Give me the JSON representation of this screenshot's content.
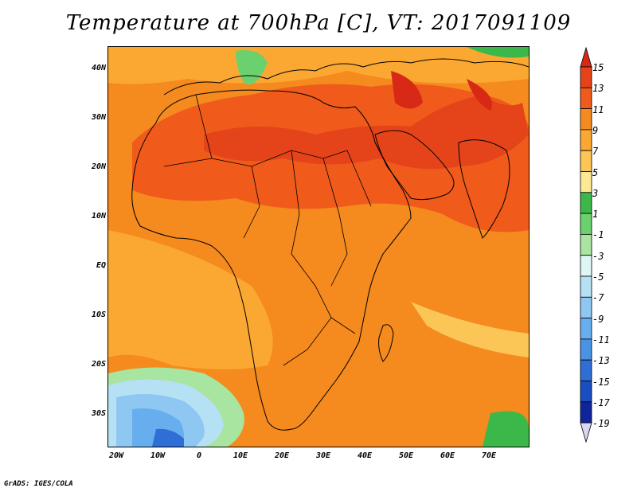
{
  "title": "Temperature at 700hPa [C], VT: 2017091109",
  "footer": "GrADS: IGES/COLA",
  "map": {
    "lat_labels": [
      "40N",
      "30N",
      "20N",
      "10N",
      "EQ",
      "10S",
      "20S",
      "30S"
    ],
    "lon_labels": [
      "20W",
      "10W",
      "0",
      "10E",
      "20E",
      "30E",
      "40E",
      "50E",
      "60E",
      "70E"
    ],
    "extent": {
      "lon_min": -22,
      "lon_max": 80,
      "lat_min": -36,
      "lat_max": 45
    }
  },
  "colorbar": {
    "labels": [
      "15",
      "13",
      "11",
      "9",
      "7",
      "5",
      "3",
      "1",
      "-1",
      "-3",
      "-5",
      "-7",
      "-9",
      "-11",
      "-13",
      "-15",
      "-17",
      "-19"
    ],
    "colors": [
      "#d72916",
      "#e5431a",
      "#f05b1c",
      "#f58a1e",
      "#fba832",
      "#fcc657",
      "#fde893",
      "#3cb84a",
      "#6bd16e",
      "#a8e5a0",
      "#def6f6",
      "#b6e1f5",
      "#8ec8f2",
      "#66aeee",
      "#4893e4",
      "#2f6fd5",
      "#1b4dc2",
      "#10259a",
      "#070c6b"
    ]
  }
}
